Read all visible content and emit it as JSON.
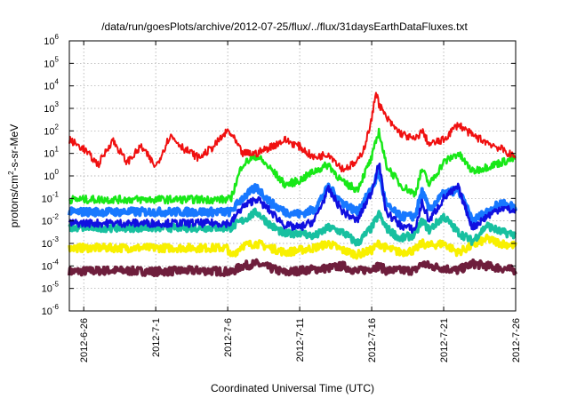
{
  "chart_data": {
    "type": "line",
    "title": "/data/run/goesPlots/archive/2012-07-25/flux/../flux/31daysEarthDataFluxes.txt",
    "xlabel": "Coordinated Universal Time (UTC)",
    "ylabel_main": "protons/cm",
    "ylabel_sup": "2",
    "ylabel_tail": "-s-sr-MeV",
    "y_scale": "log",
    "y_exponent_min": -6,
    "y_exponent_max": 6,
    "y_tick_base": "10",
    "y_tick_exponents": [
      "-6",
      "-5",
      "-4",
      "-3",
      "-2",
      "-1",
      "0",
      "1",
      "2",
      "3",
      "4",
      "5",
      "6"
    ],
    "x_range_days": [
      0,
      31
    ],
    "x_ticks": [
      {
        "day": 1,
        "label": "2012-6-26"
      },
      {
        "day": 6,
        "label": "2012-7-1"
      },
      {
        "day": 11,
        "label": "2012-7-6"
      },
      {
        "day": 16,
        "label": "2012-7-11"
      },
      {
        "day": 21,
        "label": "2012-7-16"
      },
      {
        "day": 26,
        "label": "2012-7-21"
      },
      {
        "day": 31,
        "label": "2012-7-26"
      }
    ],
    "grid": true,
    "series": [
      {
        "color": "#6e1e3c",
        "width": 4.0,
        "points": [
          [
            0,
            -4.25
          ],
          [
            3,
            -4.2
          ],
          [
            6,
            -4.25
          ],
          [
            9,
            -4.2
          ],
          [
            11,
            -4.25
          ],
          [
            11.2,
            -4.3
          ],
          [
            12,
            -4.0
          ],
          [
            13,
            -3.9
          ],
          [
            14,
            -4.1
          ],
          [
            15,
            -4.3
          ],
          [
            16,
            -4.2
          ],
          [
            18,
            -4.1
          ],
          [
            19,
            -4.0
          ],
          [
            20,
            -4.25
          ],
          [
            21,
            -4.1
          ],
          [
            21.5,
            -4.0
          ],
          [
            22,
            -4.2
          ],
          [
            23,
            -4.2
          ],
          [
            24,
            -4.2
          ],
          [
            24.5,
            -3.9
          ],
          [
            25,
            -4.0
          ],
          [
            26,
            -4.1
          ],
          [
            27,
            -4.2
          ],
          [
            28,
            -3.9
          ],
          [
            29,
            -4.0
          ],
          [
            30,
            -4.1
          ],
          [
            31,
            -4.2
          ]
        ]
      },
      {
        "color": "#f8f000",
        "width": 3.5,
        "points": [
          [
            0,
            -3.2
          ],
          [
            3,
            -3.2
          ],
          [
            6,
            -3.2
          ],
          [
            9,
            -3.2
          ],
          [
            11,
            -3.2
          ],
          [
            11.2,
            -3.6
          ],
          [
            12,
            -3.1
          ],
          [
            13,
            -3.0
          ],
          [
            14,
            -3.2
          ],
          [
            15,
            -3.4
          ],
          [
            16,
            -3.3
          ],
          [
            17,
            -3.2
          ],
          [
            18,
            -3.0
          ],
          [
            19,
            -3.3
          ],
          [
            20,
            -3.5
          ],
          [
            21,
            -3.3
          ],
          [
            21.5,
            -3.0
          ],
          [
            22,
            -3.2
          ],
          [
            23,
            -3.4
          ],
          [
            24,
            -3.3
          ],
          [
            24.5,
            -3.0
          ],
          [
            25,
            -3.1
          ],
          [
            26,
            -3.0
          ],
          [
            27,
            -3.4
          ],
          [
            28,
            -3.1
          ],
          [
            29,
            -2.8
          ],
          [
            30,
            -3.0
          ],
          [
            31,
            -3.1
          ]
        ]
      },
      {
        "color": "#18c0a0",
        "width": 3.5,
        "points": [
          [
            0,
            -2.3
          ],
          [
            3,
            -2.3
          ],
          [
            6,
            -2.3
          ],
          [
            9,
            -2.3
          ],
          [
            11,
            -2.3
          ],
          [
            11.2,
            -2.3
          ],
          [
            12,
            -2.0
          ],
          [
            13,
            -1.6
          ],
          [
            14,
            -2.2
          ],
          [
            15,
            -2.6
          ],
          [
            16,
            -2.5
          ],
          [
            17,
            -2.7
          ],
          [
            18,
            -2.3
          ],
          [
            19,
            -2.5
          ],
          [
            20,
            -3.0
          ],
          [
            21,
            -2.3
          ],
          [
            21.5,
            -1.7
          ],
          [
            22,
            -2.3
          ],
          [
            23,
            -2.8
          ],
          [
            24,
            -2.6
          ],
          [
            24.5,
            -2.0
          ],
          [
            25,
            -2.4
          ],
          [
            26,
            -1.8
          ],
          [
            27,
            -2.5
          ],
          [
            28,
            -2.9
          ],
          [
            29,
            -2.2
          ],
          [
            30,
            -2.5
          ],
          [
            31,
            -2.6
          ]
        ]
      },
      {
        "color": "#1878ff",
        "width": 4.0,
        "points": [
          [
            0,
            -1.6
          ],
          [
            3,
            -1.6
          ],
          [
            6,
            -1.6
          ],
          [
            9,
            -1.6
          ],
          [
            11,
            -1.6
          ],
          [
            11.2,
            -1.6
          ],
          [
            12,
            -1.0
          ],
          [
            13,
            -0.5
          ],
          [
            14,
            -1.2
          ],
          [
            15,
            -1.6
          ],
          [
            16,
            -1.7
          ],
          [
            17,
            -1.5
          ],
          [
            18,
            -0.5
          ],
          [
            19,
            -1.2
          ],
          [
            20,
            -1.6
          ],
          [
            21,
            -0.6
          ],
          [
            21.5,
            0.2
          ],
          [
            22,
            -1.3
          ],
          [
            23,
            -1.8
          ],
          [
            24,
            -1.8
          ],
          [
            24.5,
            -0.7
          ],
          [
            25,
            -1.5
          ],
          [
            26,
            -0.8
          ],
          [
            27,
            -0.6
          ],
          [
            28,
            -2.0
          ],
          [
            29,
            -1.6
          ],
          [
            30,
            -1.2
          ],
          [
            31,
            -1.4
          ]
        ]
      },
      {
        "color": "#18e818",
        "width": 2.5,
        "points": [
          [
            0,
            -1.05
          ],
          [
            3,
            -1.05
          ],
          [
            6,
            -1.05
          ],
          [
            9,
            -1.05
          ],
          [
            11,
            -1.05
          ],
          [
            11.2,
            -1.05
          ],
          [
            12,
            0.5
          ],
          [
            13,
            0.9
          ],
          [
            14,
            0.3
          ],
          [
            15,
            -0.4
          ],
          [
            16,
            -0.2
          ],
          [
            17,
            0.2
          ],
          [
            18,
            0.5
          ],
          [
            19,
            -0.3
          ],
          [
            20,
            -0.6
          ],
          [
            21,
            0.8
          ],
          [
            21.5,
            2.0
          ],
          [
            22,
            0.5
          ],
          [
            23,
            -0.4
          ],
          [
            24,
            -0.8
          ],
          [
            24.5,
            0.3
          ],
          [
            25,
            -0.4
          ],
          [
            26,
            0.6
          ],
          [
            27,
            1.0
          ],
          [
            28,
            0.2
          ],
          [
            29,
            0.4
          ],
          [
            30,
            0.6
          ],
          [
            31,
            0.8
          ]
        ]
      },
      {
        "color": "#1010e0",
        "width": 2.5,
        "points": [
          [
            0,
            -2.1
          ],
          [
            3,
            -2.1
          ],
          [
            6,
            -2.1
          ],
          [
            9,
            -2.1
          ],
          [
            11,
            -2.1
          ],
          [
            11.2,
            -2.1
          ],
          [
            12,
            -1.4
          ],
          [
            13,
            -1.0
          ],
          [
            14,
            -1.6
          ],
          [
            15,
            -2.2
          ],
          [
            16,
            -2.3
          ],
          [
            17,
            -2.0
          ],
          [
            18,
            -0.6
          ],
          [
            19,
            -1.6
          ],
          [
            20,
            -2.0
          ],
          [
            21,
            -0.7
          ],
          [
            21.5,
            0.6
          ],
          [
            22,
            -1.6
          ],
          [
            23,
            -2.2
          ],
          [
            24,
            -2.4
          ],
          [
            24.5,
            -1.2
          ],
          [
            25,
            -2.0
          ],
          [
            26,
            -1.0
          ],
          [
            27,
            -0.5
          ],
          [
            28,
            -2.3
          ],
          [
            29,
            -1.8
          ],
          [
            30,
            -1.4
          ],
          [
            31,
            -1.6
          ]
        ]
      },
      {
        "color": "#f01010",
        "width": 2.0,
        "points": [
          [
            0,
            1.6
          ],
          [
            1,
            1.2
          ],
          [
            2,
            0.5
          ],
          [
            3,
            1.6
          ],
          [
            4,
            0.6
          ],
          [
            5,
            1.3
          ],
          [
            6,
            0.4
          ],
          [
            7,
            1.8
          ],
          [
            8,
            1.2
          ],
          [
            9,
            0.8
          ],
          [
            10,
            1.3
          ],
          [
            11,
            2.0
          ],
          [
            11.3,
            1.8
          ],
          [
            12,
            1.0
          ],
          [
            13,
            1.0
          ],
          [
            14,
            1.3
          ],
          [
            15,
            1.6
          ],
          [
            16,
            1.3
          ],
          [
            17,
            0.8
          ],
          [
            18,
            1.0
          ],
          [
            19,
            0.3
          ],
          [
            20,
            0.6
          ],
          [
            20.5,
            1.3
          ],
          [
            21,
            2.5
          ],
          [
            21.3,
            3.8
          ],
          [
            21.5,
            3.2
          ],
          [
            22,
            2.6
          ],
          [
            22.5,
            2.2
          ],
          [
            23,
            1.9
          ],
          [
            24,
            1.6
          ],
          [
            24.5,
            2.0
          ],
          [
            25,
            1.4
          ],
          [
            26,
            1.6
          ],
          [
            27,
            2.3
          ],
          [
            28,
            1.8
          ],
          [
            29,
            1.5
          ],
          [
            30,
            1.2
          ],
          [
            31,
            0.8
          ]
        ]
      }
    ]
  }
}
